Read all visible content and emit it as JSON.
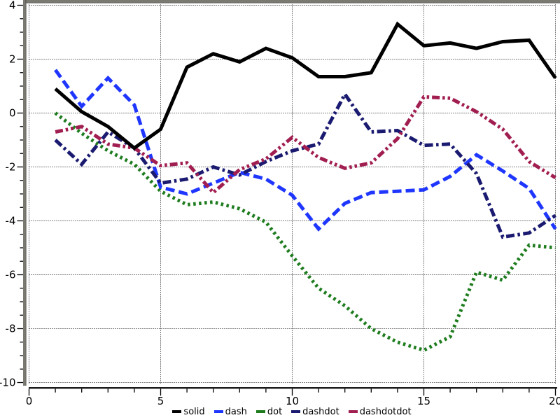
{
  "chart_data": {
    "type": "line",
    "title": "",
    "xlabel": "",
    "ylabel": "",
    "xlim": [
      0,
      20
    ],
    "ylim": [
      -10,
      4
    ],
    "x_major_ticks": [
      0,
      5,
      10,
      15,
      20
    ],
    "x_tick_labels": [
      "0",
      "5",
      "10",
      "15",
      "20"
    ],
    "x_minor_step": 1,
    "y_major_ticks": [
      4,
      2,
      0,
      -2,
      -4,
      -6,
      -8,
      -10
    ],
    "y_tick_labels": [
      "4",
      "2",
      "0",
      "-2",
      "-4",
      "-6",
      "-8",
      "-10"
    ],
    "y_minor_step": 0.5,
    "grid": "dotted",
    "legend_position": "bottom-center",
    "x": [
      1,
      2,
      3,
      4,
      5,
      6,
      7,
      8,
      9,
      10,
      11,
      12,
      13,
      14,
      15,
      16,
      17,
      18,
      19,
      20
    ],
    "series": [
      {
        "name": "solid",
        "line_style": "solid",
        "color": "#000000",
        "values": [
          0.9,
          0.05,
          -0.5,
          -1.3,
          -0.6,
          1.7,
          2.2,
          1.9,
          2.4,
          2.05,
          1.35,
          1.35,
          1.5,
          3.3,
          2.5,
          2.6,
          2.4,
          2.65,
          2.7,
          1.3
        ]
      },
      {
        "name": "dash",
        "line_style": "dash",
        "color": "#1f36ff",
        "values": [
          1.6,
          0.25,
          1.3,
          0.3,
          -2.75,
          -3.0,
          -2.6,
          -2.2,
          -2.45,
          -3.05,
          -4.3,
          -3.35,
          -2.95,
          -2.9,
          -2.85,
          -2.35,
          -1.55,
          -2.15,
          -2.8,
          -4.3
        ]
      },
      {
        "name": "dot",
        "line_style": "dot",
        "color": "#1e7c1e",
        "values": [
          0.0,
          -0.75,
          -1.4,
          -1.9,
          -2.9,
          -3.4,
          -3.3,
          -3.55,
          -4.05,
          -5.3,
          -6.5,
          -7.15,
          -8.0,
          -8.5,
          -8.8,
          -8.3,
          -5.9,
          -6.2,
          -4.9,
          -5.0
        ]
      },
      {
        "name": "dashdot",
        "line_style": "dashdot",
        "color": "#1a1a70",
        "values": [
          -1.0,
          -1.9,
          -0.7,
          -1.3,
          -2.6,
          -2.45,
          -2.0,
          -2.3,
          -1.8,
          -1.4,
          -1.15,
          0.7,
          -0.7,
          -0.65,
          -1.2,
          -1.15,
          -2.25,
          -4.6,
          -4.45,
          -3.8
        ]
      },
      {
        "name": "dashdotdot",
        "line_style": "dashdotdot",
        "color": "#a11e50",
        "values": [
          -0.7,
          -0.5,
          -1.15,
          -1.3,
          -1.95,
          -1.85,
          -2.95,
          -2.1,
          -1.7,
          -0.9,
          -1.65,
          -2.05,
          -1.85,
          -0.95,
          0.6,
          0.55,
          0.05,
          -0.6,
          -1.8,
          -2.4
        ]
      }
    ],
    "legend": [
      "solid",
      "dash",
      "dot",
      "dashdot",
      "dashdotdot"
    ]
  },
  "frame": {
    "bevel_color": "#7b7a72",
    "bevel_shadow": "#5c5b54",
    "axis_color": "#1a1a1a",
    "grid_color": "#000000",
    "background": "#ffffff"
  }
}
